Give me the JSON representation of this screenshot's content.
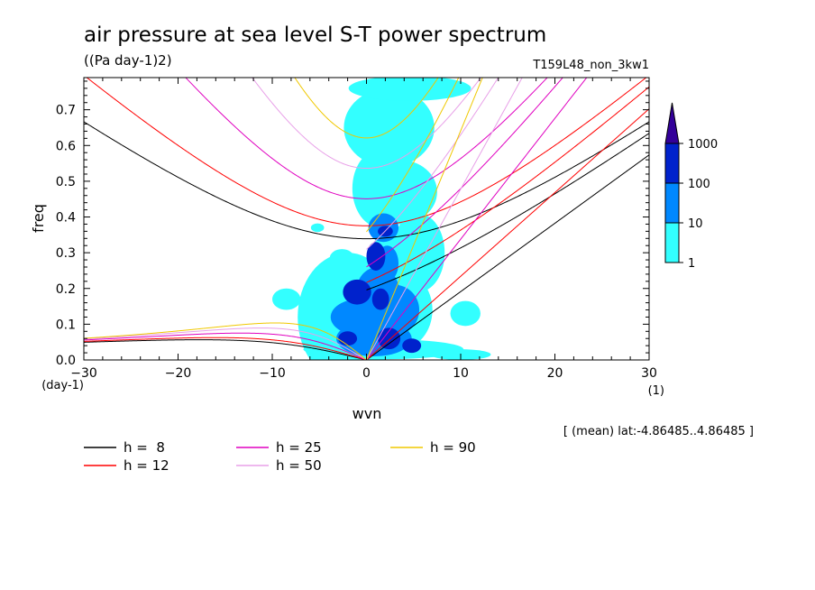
{
  "chart_data": {
    "type": "heatmap",
    "title": "air pressure at sea level S-T power spectrum",
    "units": "((Pa day-1)2)",
    "run_label": "T159L48_non_3kw1",
    "xlabel": "wvn",
    "ylabel": "freq",
    "x_unit": "(1)",
    "y_unit": "(day-1)",
    "xlim": [
      -30,
      30
    ],
    "ylim": [
      0,
      0.79
    ],
    "x_ticks": [
      -30,
      -20,
      -10,
      0,
      10,
      20,
      30
    ],
    "y_ticks": [
      0.0,
      0.1,
      0.2,
      0.3,
      0.4,
      0.5,
      0.6,
      0.7
    ],
    "footnote": "[ (mean) lat:-4.86485..4.86485 ]",
    "colorbar": {
      "levels": [
        "1",
        "10",
        "100",
        "1000"
      ],
      "colors": [
        "#33ffff",
        "#0088ff",
        "#0022cc",
        "#330099"
      ]
    },
    "blobs": [
      {
        "x": -5.2,
        "y": 0.37,
        "rx": 0.7,
        "ry": 0.012,
        "level": 0
      },
      {
        "x": -2.6,
        "y": 0.285,
        "rx": 1.3,
        "ry": 0.025,
        "level": 0
      },
      {
        "x": -2.0,
        "y": 0.12,
        "rx": 5.3,
        "ry": 0.18,
        "level": 0
      },
      {
        "x": 1.0,
        "y": 0.16,
        "rx": 2.6,
        "ry": 0.09,
        "level": 0
      },
      {
        "x": 2.1,
        "y": 0.29,
        "rx": 1.5,
        "ry": 0.075,
        "level": 0
      },
      {
        "x": 3.5,
        "y": 0.14,
        "rx": 3.5,
        "ry": 0.11,
        "level": 0
      },
      {
        "x": 5.5,
        "y": 0.3,
        "rx": 2.8,
        "ry": 0.11,
        "level": 0
      },
      {
        "x": 1.5,
        "y": 0.48,
        "rx": 3.0,
        "ry": 0.11,
        "level": 0
      },
      {
        "x": 3.5,
        "y": 0.47,
        "rx": 4.0,
        "ry": 0.09,
        "level": 0
      },
      {
        "x": 2.4,
        "y": 0.65,
        "rx": 4.8,
        "ry": 0.11,
        "level": 0
      },
      {
        "x": 4.6,
        "y": 0.76,
        "rx": 6.5,
        "ry": 0.035,
        "level": 0
      },
      {
        "x": 1.8,
        "y": 0.03,
        "rx": 8.5,
        "ry": 0.028,
        "level": 0
      },
      {
        "x": 10.0,
        "y": 0.015,
        "rx": 3.2,
        "ry": 0.015,
        "level": 0
      },
      {
        "x": 10.5,
        "y": 0.13,
        "rx": 1.6,
        "ry": 0.035,
        "level": 0
      },
      {
        "x": -8.5,
        "y": 0.17,
        "rx": 1.5,
        "ry": 0.03,
        "level": 0
      },
      {
        "x": 1.2,
        "y": 0.19,
        "rx": 2.3,
        "ry": 0.07,
        "level": 1
      },
      {
        "x": 1.8,
        "y": 0.37,
        "rx": 1.6,
        "ry": 0.04,
        "level": 1
      },
      {
        "x": 3.0,
        "y": 0.14,
        "rx": 2.6,
        "ry": 0.07,
        "level": 1
      },
      {
        "x": 0.8,
        "y": 0.06,
        "rx": 4.0,
        "ry": 0.05,
        "level": 1
      },
      {
        "x": -0.8,
        "y": 0.12,
        "rx": 3.0,
        "ry": 0.05,
        "level": 1
      },
      {
        "x": 2.2,
        "y": 0.27,
        "rx": 1.2,
        "ry": 0.05,
        "level": 1
      },
      {
        "x": -1.0,
        "y": 0.19,
        "rx": 1.5,
        "ry": 0.035,
        "level": 2
      },
      {
        "x": 1.0,
        "y": 0.29,
        "rx": 1.0,
        "ry": 0.04,
        "level": 2
      },
      {
        "x": 1.5,
        "y": 0.17,
        "rx": 0.9,
        "ry": 0.03,
        "level": 2
      },
      {
        "x": -2.0,
        "y": 0.06,
        "rx": 1.0,
        "ry": 0.02,
        "level": 2
      },
      {
        "x": 2.4,
        "y": 0.06,
        "rx": 1.2,
        "ry": 0.03,
        "level": 2
      },
      {
        "x": 4.8,
        "y": 0.04,
        "rx": 1.0,
        "ry": 0.02,
        "level": 2
      },
      {
        "x": 2.0,
        "y": 0.36,
        "rx": 0.8,
        "ry": 0.015,
        "level": 2
      }
    ],
    "series": [
      {
        "name": "h =  8",
        "h": 8,
        "color": "#000000"
      },
      {
        "name": "h = 12",
        "h": 12,
        "color": "#ff0000"
      },
      {
        "name": "h = 25",
        "h": 25,
        "color": "#e000c0"
      },
      {
        "name": "h = 50",
        "h": 50,
        "color": "#e8a0e8"
      },
      {
        "name": "h = 90",
        "h": 90,
        "color": "#f0c800"
      }
    ]
  }
}
